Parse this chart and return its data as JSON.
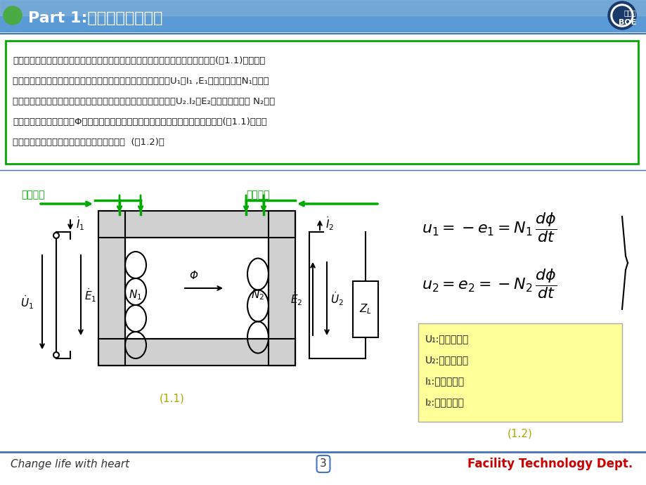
{
  "title": "Part 1:变压器的工作原理",
  "header_bg_color": "#5b9bd5",
  "header_gradient_light": "#a8c8e8",
  "text_box_content": [
    "变压器的主要部件是一个铁心线圈。这两个线圈具有不同的匝数，且互相绝缘，如(图1.1)所示。接",
    "入电源线圈称为一次绕组，其电压、电流及电动势的相量分别为U₁及I₁ ,E₁绕组的匝数为N₁。与负",
    "载相联的线圈称为二次绕组，其电压、电流及电动势的相量分别为U₂.I₂及E₂、绕组的匝数为 N₂。两",
    "个绕组的磁通称为主磁通Φ。将电路中惯用的电压、电流及电动势相量的正方向示于(图1.1)。根据",
    "电磁感应定律，可写出电压、电动势的方程式  (图1.2)："
  ],
  "footer_left": "Change life with heart",
  "footer_center": "3",
  "footer_right": "Facility Technology Dept.",
  "label_yici": "一次线圈",
  "label_erci": "二次线圈",
  "legend_items": [
    "U₁:一次侧电压",
    "U₂:二次侧电压",
    "I₁:一次侧电流",
    "I₂:二次侧电流"
  ],
  "label_11": "(1.1)",
  "label_12": "(1.2)",
  "bg_color": "#ffffff",
  "text_border_color": "#00aa00",
  "header_text_color": "#ffffff",
  "formula_box_color": "#ffff99",
  "arrow_color_green": "#00aa00",
  "arrow_color_dark": "#333333"
}
